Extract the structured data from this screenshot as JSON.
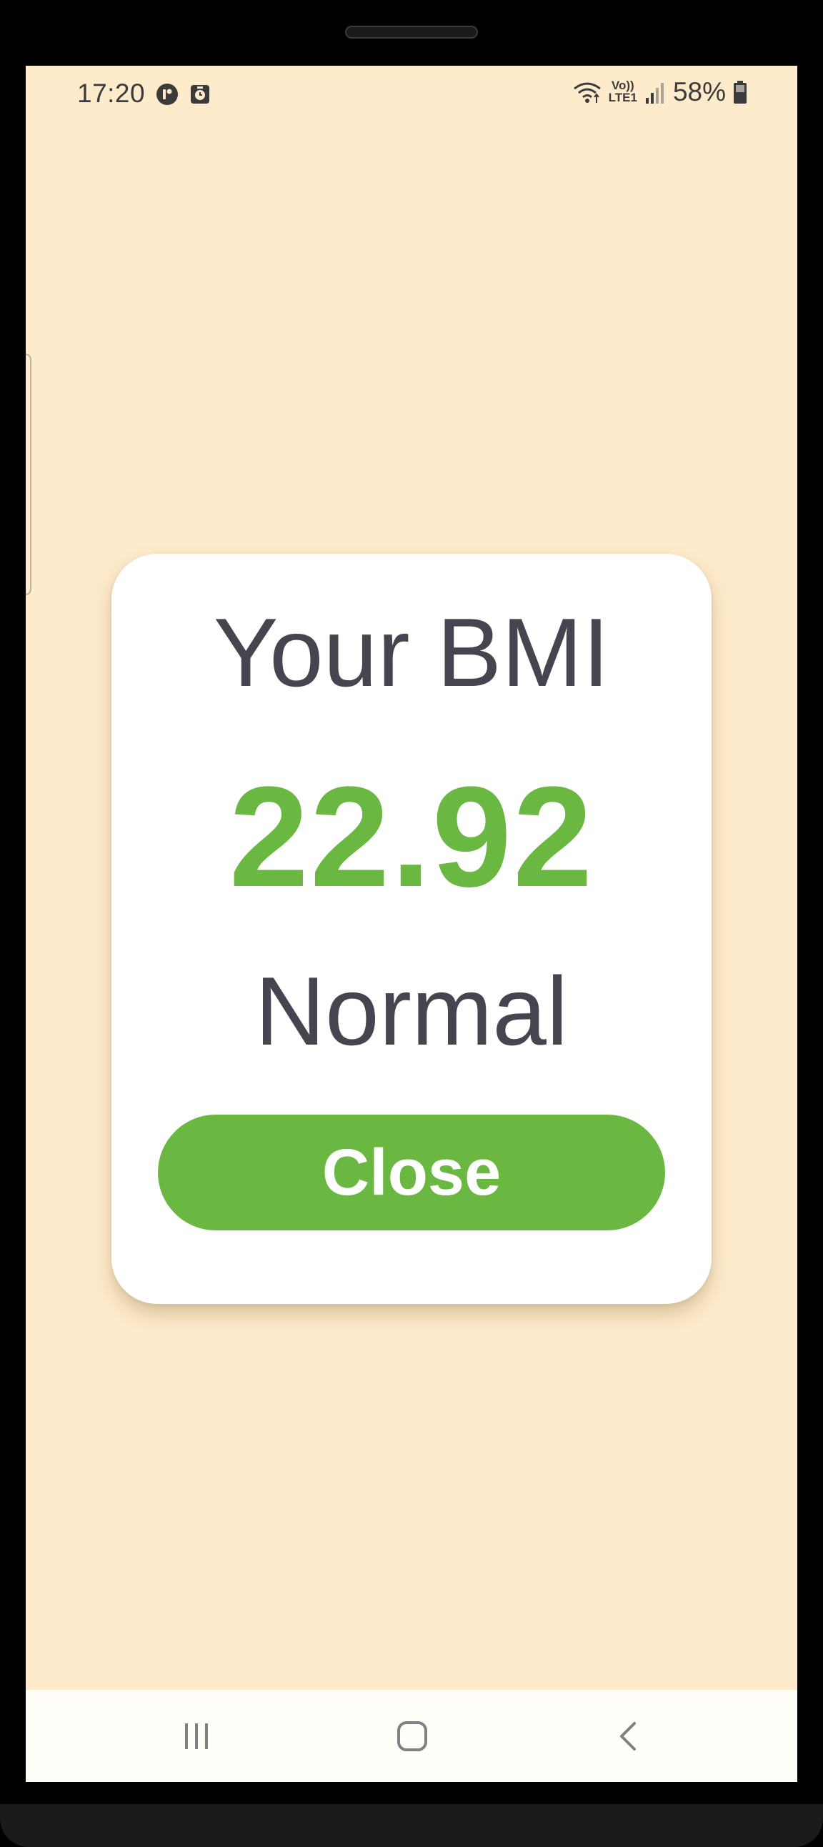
{
  "status_bar": {
    "time": "17:20",
    "battery_percent": "58%",
    "network_label_top": "Vo))",
    "network_label_bottom": "LTE1"
  },
  "dialog": {
    "title": "Your BMI",
    "bmi_value": "22.92",
    "category": "Normal",
    "close_label": "Close"
  },
  "colors": {
    "background": "#FEEBCB",
    "accent_green": "#6AB842",
    "text_dark": "#46454F",
    "card": "#FFFFFF"
  },
  "icons": {
    "status_left": [
      "app-notification-icon",
      "clock-app-icon"
    ],
    "status_right": [
      "wifi-icon",
      "volte-lte-icon",
      "signal-icon",
      "battery-icon"
    ],
    "navigation": [
      "recent-apps-icon",
      "home-icon",
      "back-icon"
    ]
  }
}
